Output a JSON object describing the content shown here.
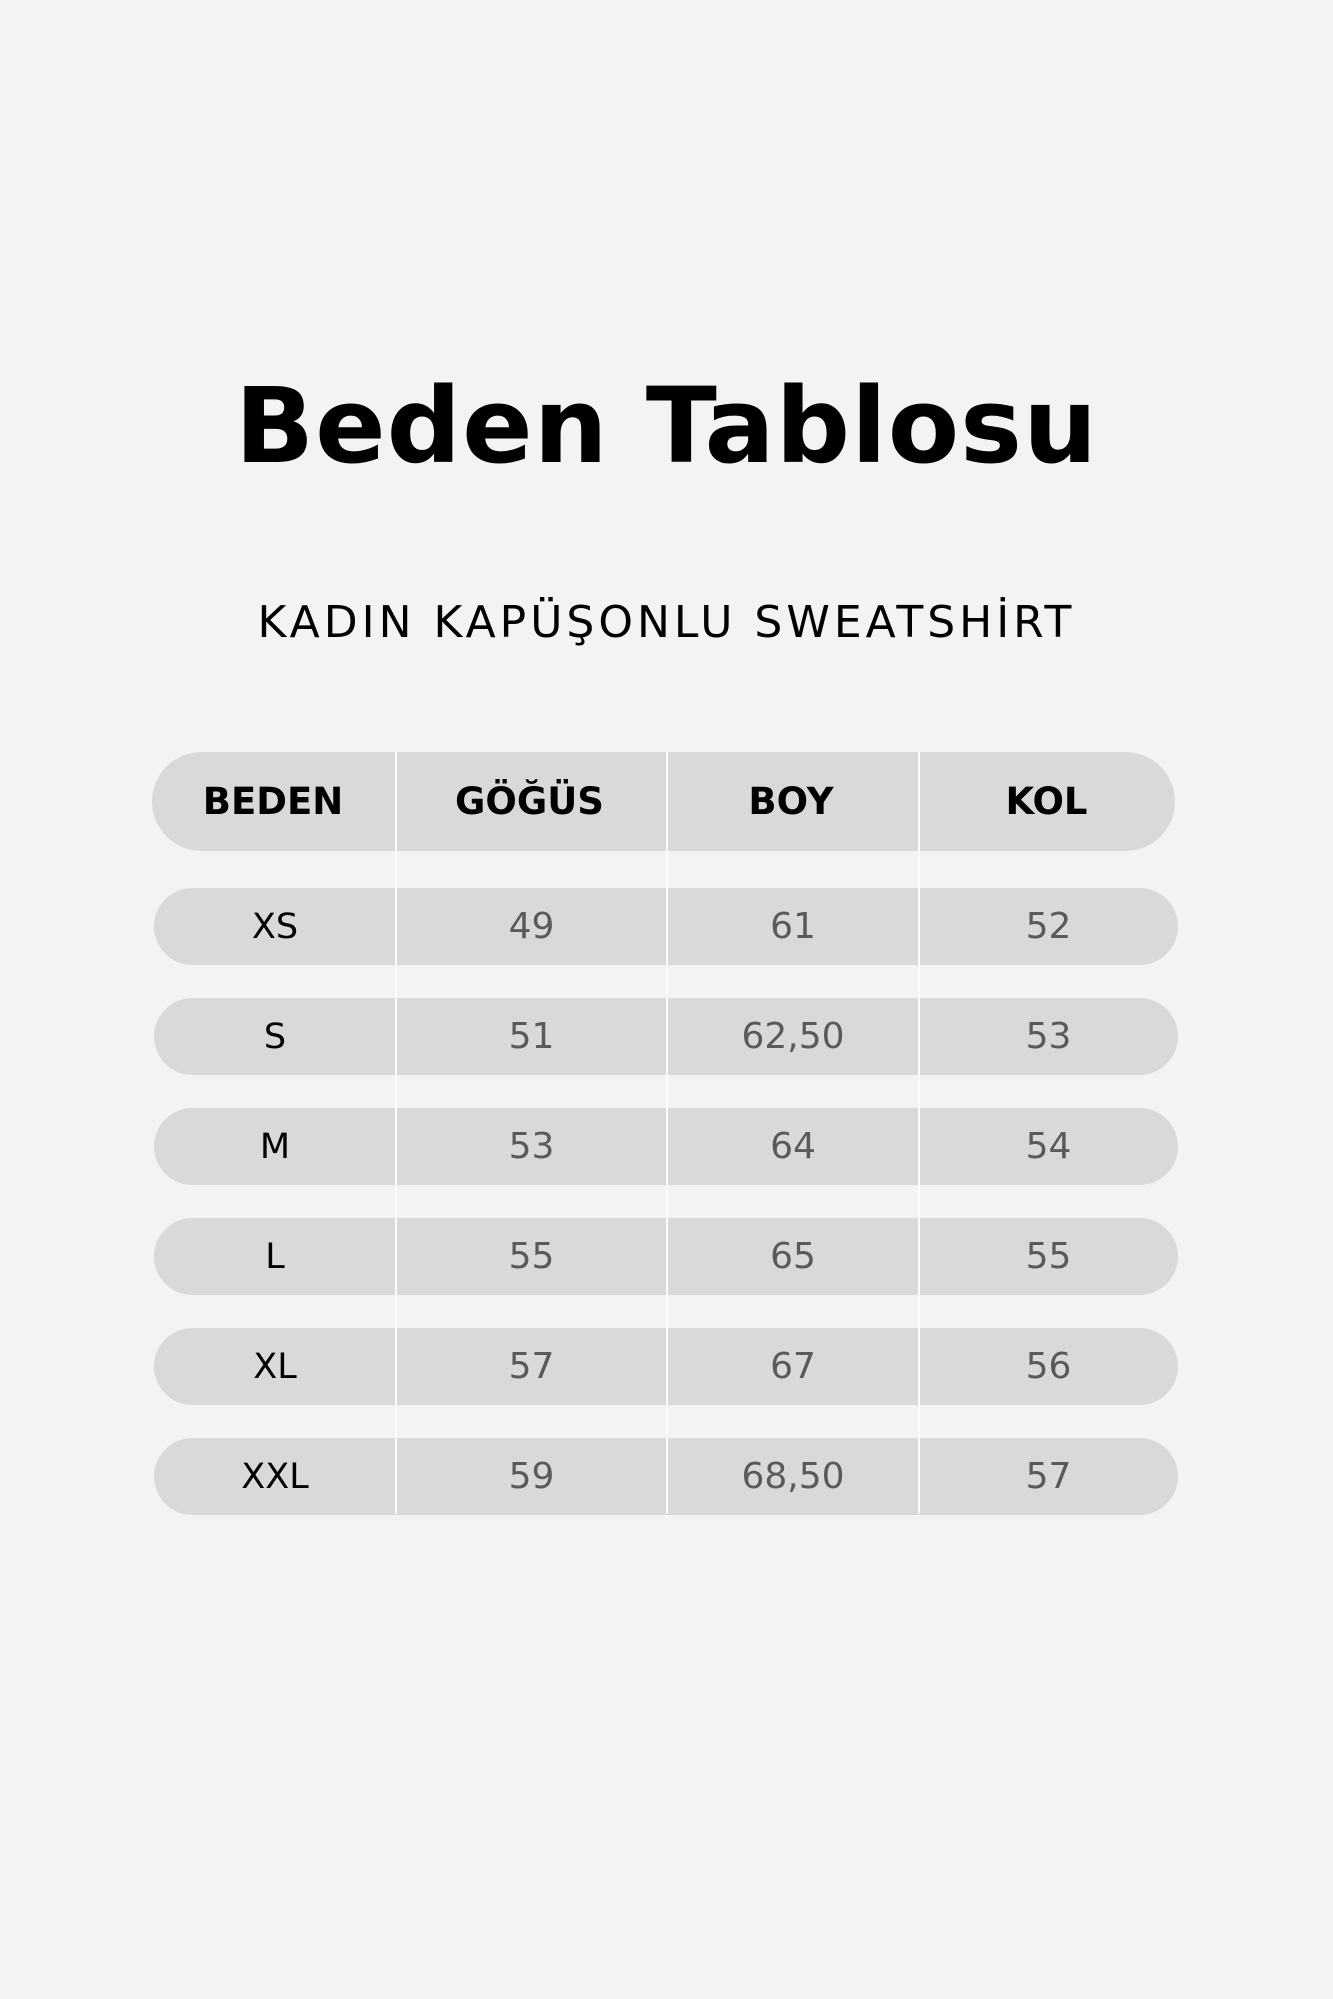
{
  "title": "Beden Tablosu",
  "subtitle": "KADIN KAPÜŞONLU SWEATSHİRT",
  "table": {
    "headers": [
      "BEDEN",
      "GÖĞÜS",
      "BOY",
      "KOL"
    ],
    "rows": [
      [
        "XS",
        "49",
        "61",
        "52"
      ],
      [
        "S",
        "51",
        "62,50",
        "53"
      ],
      [
        "M",
        "53",
        "64",
        "54"
      ],
      [
        "L",
        "55",
        "65",
        "55"
      ],
      [
        "XL",
        "57",
        "67",
        "56"
      ],
      [
        "XXL",
        "59",
        "68,50",
        "57"
      ]
    ]
  },
  "colors": {
    "background": "#f4f3f2",
    "row_fill": "#d9d9d9",
    "value_text": "#5a5a5a"
  }
}
